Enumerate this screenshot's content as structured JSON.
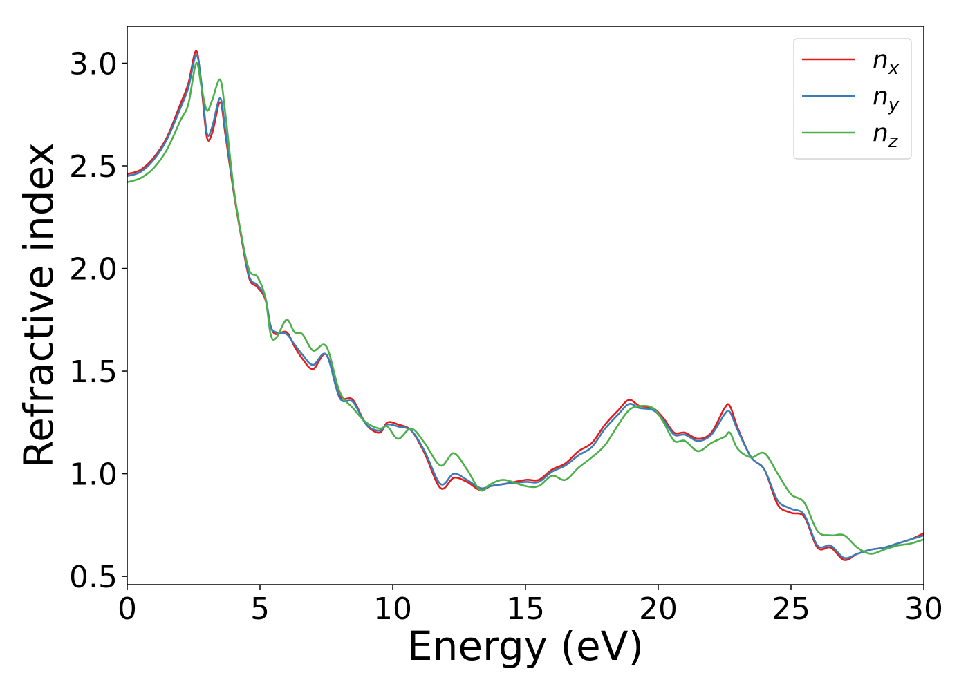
{
  "chart_data": {
    "type": "line",
    "title": "",
    "xlabel": "Energy (eV)",
    "ylabel": "Refractive index",
    "xlim": [
      0,
      30
    ],
    "ylim": [
      0.46,
      3.18
    ],
    "xticks": [
      0,
      5,
      10,
      15,
      20,
      25,
      30
    ],
    "xtick_labels": [
      "0",
      "5",
      "10",
      "15",
      "20",
      "25",
      "30"
    ],
    "yticks": [
      0.5,
      1.0,
      1.5,
      2.0,
      2.5,
      3.0
    ],
    "ytick_labels": [
      "0.5",
      "1.0",
      "1.5",
      "2.0",
      "2.5",
      "3.0"
    ],
    "grid": false,
    "legend": {
      "placement": "top-right",
      "entries": [
        {
          "base": "n",
          "sub": "x"
        },
        {
          "base": "n",
          "sub": "y"
        },
        {
          "base": "n",
          "sub": "z"
        }
      ]
    },
    "series": [
      {
        "name": "n_x",
        "color": "#e41a1c",
        "x": [
          0,
          0.5,
          1,
          1.5,
          2,
          2.3,
          2.6,
          2.8,
          3.0,
          3.2,
          3.5,
          3.7,
          4.0,
          4.3,
          4.6,
          4.9,
          5.2,
          5.4,
          5.6,
          6.0,
          6.3,
          6.6,
          7.0,
          7.5,
          8.0,
          8.5,
          9.0,
          9.5,
          9.8,
          10.2,
          10.7,
          11.2,
          11.8,
          12.3,
          12.8,
          13.3,
          13.7,
          14.2,
          15.0,
          15.5,
          16.0,
          16.5,
          17.0,
          17.5,
          18.0,
          18.5,
          18.9,
          19.3,
          19.8,
          20.2,
          20.6,
          21.0,
          21.5,
          22.0,
          22.5,
          22.7,
          23.0,
          23.5,
          24.0,
          24.5,
          25.0,
          25.5,
          26.0,
          26.5,
          27.0,
          27.5,
          28.0,
          28.5,
          29.0,
          29.5,
          30.0
        ],
        "y": [
          2.46,
          2.48,
          2.54,
          2.64,
          2.8,
          2.9,
          3.06,
          2.88,
          2.64,
          2.66,
          2.81,
          2.65,
          2.38,
          2.15,
          1.95,
          1.91,
          1.85,
          1.72,
          1.68,
          1.69,
          1.62,
          1.56,
          1.51,
          1.58,
          1.38,
          1.36,
          1.24,
          1.2,
          1.25,
          1.24,
          1.21,
          1.1,
          0.93,
          0.98,
          0.96,
          0.92,
          0.94,
          0.95,
          0.97,
          0.97,
          1.02,
          1.05,
          1.11,
          1.15,
          1.24,
          1.31,
          1.36,
          1.33,
          1.32,
          1.27,
          1.2,
          1.2,
          1.17,
          1.2,
          1.32,
          1.33,
          1.22,
          1.08,
          1.02,
          0.85,
          0.81,
          0.79,
          0.64,
          0.64,
          0.58,
          0.61,
          0.63,
          0.64,
          0.66,
          0.68,
          0.71
        ]
      },
      {
        "name": "n_y",
        "color": "#377eb8",
        "x": [
          0,
          0.5,
          1,
          1.5,
          2,
          2.3,
          2.6,
          2.8,
          3.0,
          3.2,
          3.5,
          3.7,
          4.0,
          4.3,
          4.6,
          4.9,
          5.2,
          5.4,
          5.6,
          6.0,
          6.3,
          6.6,
          7.0,
          7.5,
          8.0,
          8.5,
          9.0,
          9.5,
          9.8,
          10.2,
          10.7,
          11.2,
          11.8,
          12.3,
          12.8,
          13.3,
          13.7,
          14.2,
          15.0,
          15.5,
          16.0,
          16.5,
          17.0,
          17.5,
          18.0,
          18.5,
          18.9,
          19.3,
          19.8,
          20.2,
          20.6,
          21.0,
          21.5,
          22.0,
          22.5,
          22.7,
          23.0,
          23.5,
          24.0,
          24.5,
          25.0,
          25.5,
          26.0,
          26.5,
          27.0,
          27.5,
          28.0,
          28.5,
          29.0,
          29.5,
          30.0
        ],
        "y": [
          2.45,
          2.47,
          2.53,
          2.63,
          2.78,
          2.88,
          3.04,
          2.9,
          2.66,
          2.69,
          2.83,
          2.67,
          2.39,
          2.16,
          1.96,
          1.92,
          1.86,
          1.72,
          1.69,
          1.68,
          1.63,
          1.58,
          1.53,
          1.58,
          1.37,
          1.35,
          1.24,
          1.21,
          1.24,
          1.23,
          1.21,
          1.11,
          0.95,
          1.0,
          0.97,
          0.93,
          0.94,
          0.95,
          0.96,
          0.96,
          1.01,
          1.04,
          1.09,
          1.13,
          1.22,
          1.29,
          1.34,
          1.32,
          1.31,
          1.26,
          1.19,
          1.19,
          1.16,
          1.19,
          1.29,
          1.3,
          1.21,
          1.08,
          1.02,
          0.87,
          0.83,
          0.8,
          0.65,
          0.65,
          0.59,
          0.61,
          0.63,
          0.64,
          0.66,
          0.68,
          0.7
        ]
      },
      {
        "name": "n_z",
        "color": "#4daf4a",
        "x": [
          0,
          0.5,
          1,
          1.5,
          2,
          2.3,
          2.6,
          2.8,
          3.0,
          3.2,
          3.5,
          3.7,
          4.0,
          4.3,
          4.6,
          4.9,
          5.2,
          5.4,
          5.6,
          6.0,
          6.3,
          6.6,
          7.0,
          7.5,
          8.0,
          8.5,
          9.0,
          9.5,
          9.8,
          10.2,
          10.7,
          11.2,
          11.8,
          12.3,
          12.8,
          13.3,
          13.7,
          14.2,
          15.0,
          15.5,
          16.0,
          16.5,
          17.0,
          17.5,
          18.0,
          18.5,
          18.9,
          19.3,
          19.8,
          20.2,
          20.6,
          21.0,
          21.5,
          22.0,
          22.5,
          22.7,
          23.0,
          23.5,
          24.0,
          24.5,
          25.0,
          25.5,
          26.0,
          26.5,
          27.0,
          27.5,
          28.0,
          28.5,
          29.0,
          29.5,
          30.0
        ],
        "y": [
          2.42,
          2.44,
          2.49,
          2.58,
          2.72,
          2.8,
          3.0,
          2.88,
          2.77,
          2.82,
          2.92,
          2.75,
          2.4,
          2.16,
          1.99,
          1.96,
          1.86,
          1.68,
          1.66,
          1.75,
          1.69,
          1.68,
          1.6,
          1.62,
          1.4,
          1.32,
          1.25,
          1.22,
          1.23,
          1.17,
          1.22,
          1.15,
          1.04,
          1.1,
          1.02,
          0.92,
          0.95,
          0.97,
          0.94,
          0.94,
          0.99,
          0.97,
          1.03,
          1.08,
          1.14,
          1.24,
          1.31,
          1.33,
          1.32,
          1.25,
          1.16,
          1.16,
          1.11,
          1.15,
          1.18,
          1.2,
          1.12,
          1.08,
          1.1,
          1.0,
          0.9,
          0.86,
          0.72,
          0.7,
          0.7,
          0.64,
          0.61,
          0.63,
          0.65,
          0.66,
          0.68
        ]
      }
    ]
  }
}
